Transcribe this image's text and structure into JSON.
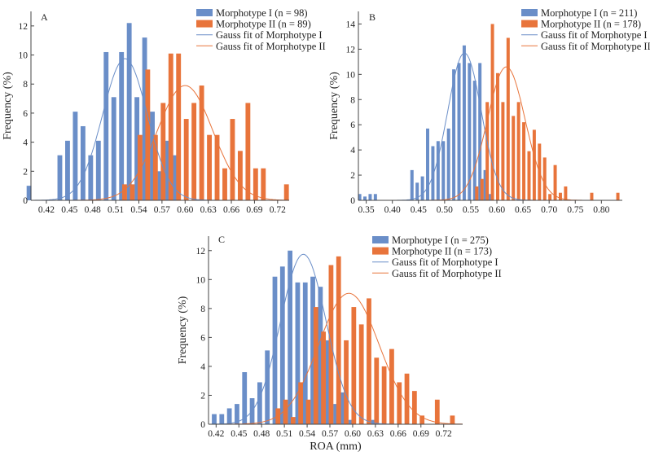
{
  "colors": {
    "morphotype_I": "#6a8ec8",
    "morphotype_II": "#e8743b",
    "axis": "#444444"
  },
  "chart_data": [
    {
      "panel": "A",
      "type": "bar",
      "ylabel": "Frequency (%)",
      "xlabel": "",
      "xlim": [
        0.4,
        0.735
      ],
      "ylim": [
        0,
        13
      ],
      "xticks": [
        "0.42",
        "0.45",
        "0.48",
        "0.51",
        "0.54",
        "0.57",
        "0.60",
        "0.63",
        "0.66",
        "0.69",
        "0.72"
      ],
      "yticks": [
        "0",
        "2",
        "4",
        "6",
        "8",
        "10",
        "12"
      ],
      "legend_position": "top-right",
      "series": [
        {
          "name": "Morphotype I (n = 98)",
          "kind": "bar",
          "x": [
            0.4,
            0.44,
            0.45,
            0.46,
            0.47,
            0.48,
            0.49,
            0.5,
            0.51,
            0.52,
            0.53,
            0.54,
            0.55,
            0.56,
            0.57,
            0.58,
            0.59
          ],
          "values": [
            1.0,
            3.1,
            4.1,
            6.1,
            5.1,
            3.1,
            4.1,
            10.2,
            7.1,
            10.2,
            12.2,
            7.1,
            11.2,
            6.1,
            2.0,
            4.1,
            3.1
          ]
        },
        {
          "name": "Morphotype II (n = 89)",
          "kind": "bar",
          "x": [
            0.52,
            0.53,
            0.54,
            0.55,
            0.56,
            0.57,
            0.58,
            0.59,
            0.6,
            0.61,
            0.62,
            0.63,
            0.64,
            0.65,
            0.66,
            0.67,
            0.68,
            0.69,
            0.7,
            0.73
          ],
          "values": [
            1.1,
            1.1,
            4.5,
            9.0,
            4.5,
            6.7,
            10.1,
            10.1,
            5.6,
            6.7,
            7.9,
            4.5,
            4.5,
            2.2,
            5.6,
            3.4,
            6.7,
            2.2,
            2.2,
            1.1
          ]
        },
        {
          "name": "Gauss fit of Morphotype I",
          "kind": "gauss",
          "mean": 0.522,
          "sigma": 0.029,
          "peak": 9.75
        },
        {
          "name": "Gauss fit of Morphotype II",
          "kind": "gauss",
          "mean": 0.6,
          "sigma": 0.036,
          "peak": 7.9
        }
      ]
    },
    {
      "panel": "B",
      "type": "bar",
      "ylabel": "Frequency (%)",
      "xlabel": "",
      "xlim": [
        0.335,
        0.84
      ],
      "ylim": [
        0,
        15
      ],
      "xticks": [
        "0.35",
        "0.40",
        "0.45",
        "0.50",
        "0.55",
        "0.60",
        "0.65",
        "0.70",
        "0.75",
        "0.80"
      ],
      "yticks": [
        "0",
        "2",
        "4",
        "6",
        "8",
        "10",
        "12",
        "14"
      ],
      "legend_position": "top-right",
      "series": [
        {
          "name": "Morphotype I (n = 211)",
          "kind": "bar",
          "x": [
            0.34,
            0.35,
            0.36,
            0.37,
            0.44,
            0.45,
            0.46,
            0.47,
            0.48,
            0.49,
            0.5,
            0.51,
            0.52,
            0.53,
            0.54,
            0.55,
            0.56,
            0.57,
            0.58,
            0.59
          ],
          "values": [
            0.5,
            0.3,
            0.5,
            0.5,
            2.4,
            1.4,
            1.9,
            5.7,
            4.3,
            4.7,
            4.7,
            5.7,
            10.4,
            10.9,
            12.3,
            10.9,
            9.5,
            10.9,
            2.4,
            0.5
          ]
        },
        {
          "name": "Morphotype II (n = 178)",
          "kind": "bar",
          "x": [
            0.56,
            0.57,
            0.58,
            0.59,
            0.6,
            0.61,
            0.62,
            0.63,
            0.64,
            0.65,
            0.66,
            0.67,
            0.68,
            0.69,
            0.7,
            0.71,
            0.72,
            0.73,
            0.78,
            0.83
          ],
          "values": [
            1.1,
            1.7,
            7.8,
            14.0,
            10.1,
            7.8,
            12.9,
            6.7,
            7.8,
            6.2,
            3.9,
            5.6,
            4.5,
            3.4,
            0.5,
            2.8,
            0.6,
            1.1,
            0.6,
            0.6
          ]
        },
        {
          "name": "Gauss fit of Morphotype I",
          "kind": "gauss",
          "mean": 0.538,
          "sigma": 0.032,
          "peak": 11.7
        },
        {
          "name": "Gauss fit of Morphotype II",
          "kind": "gauss",
          "mean": 0.618,
          "sigma": 0.036,
          "peak": 10.6
        }
      ]
    },
    {
      "panel": "C",
      "type": "bar",
      "ylabel": "Frequency (%)",
      "xlabel": "ROA (mm)",
      "xlim": [
        0.41,
        0.745
      ],
      "ylim": [
        0,
        13
      ],
      "xticks": [
        "0.42",
        "0.45",
        "0.48",
        "0.51",
        "0.54",
        "0.57",
        "0.60",
        "0.63",
        "0.66",
        "0.69",
        "0.72"
      ],
      "yticks": [
        "0",
        "2",
        "4",
        "6",
        "8",
        "10",
        "12"
      ],
      "legend_position": "top-right",
      "series": [
        {
          "name": "Morphotype I (n = 275)",
          "kind": "bar",
          "x": [
            0.42,
            0.43,
            0.44,
            0.45,
            0.46,
            0.47,
            0.48,
            0.49,
            0.5,
            0.51,
            0.52,
            0.53,
            0.54,
            0.55,
            0.56,
            0.57,
            0.58,
            0.59,
            0.6,
            0.63
          ],
          "values": [
            0.7,
            0.7,
            1.1,
            1.4,
            3.6,
            1.8,
            2.9,
            5.1,
            10.2,
            10.9,
            12.0,
            9.8,
            9.8,
            10.2,
            9.5,
            5.8,
            1.4,
            2.2,
            0.3,
            0.3
          ]
        },
        {
          "name": "Morphotype II (n = 173)",
          "kind": "bar",
          "x": [
            0.5,
            0.51,
            0.52,
            0.53,
            0.54,
            0.55,
            0.56,
            0.57,
            0.58,
            0.59,
            0.6,
            0.61,
            0.62,
            0.63,
            0.64,
            0.65,
            0.66,
            0.67,
            0.68,
            0.69,
            0.71,
            0.73
          ],
          "values": [
            1.1,
            1.7,
            0.5,
            2.9,
            1.7,
            8.1,
            6.4,
            11.0,
            11.6,
            5.8,
            8.1,
            6.9,
            8.7,
            4.6,
            4.0,
            5.2,
            2.9,
            3.5,
            2.3,
            0.6,
            1.7,
            0.6
          ]
        },
        {
          "name": "Gauss fit of Morphotype I",
          "kind": "gauss",
          "mean": 0.535,
          "sigma": 0.03,
          "peak": 11.75
        },
        {
          "name": "Gauss fit of Morphotype II",
          "kind": "gauss",
          "mean": 0.595,
          "sigma": 0.04,
          "peak": 9.05
        }
      ]
    }
  ]
}
